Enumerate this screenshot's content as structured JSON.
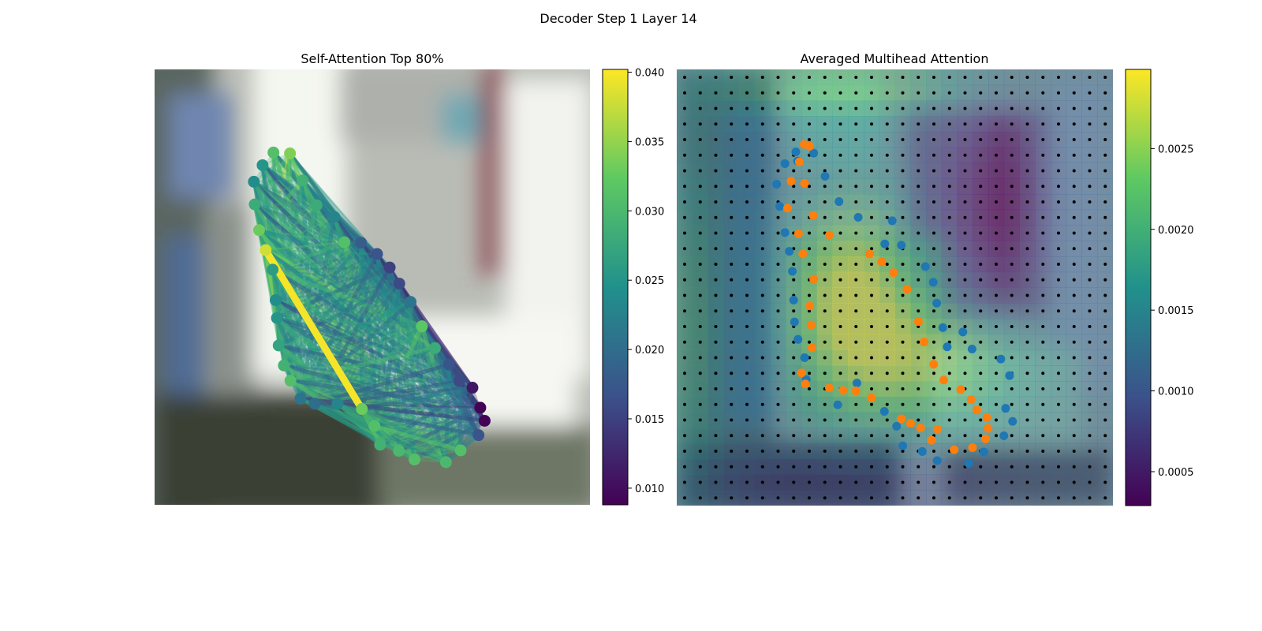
{
  "figure": {
    "title": "Decoder Step 1 Layer 14"
  },
  "colormap": {
    "name": "viridis",
    "stops": [
      "#440154",
      "#3b528b",
      "#21918c",
      "#5ec962",
      "#fde725"
    ]
  },
  "chart_data": [
    {
      "id": "self_attention",
      "type": "scatter",
      "title": "Self-Attention Top 80%",
      "xlim": [
        0,
        1
      ],
      "ylim": [
        0,
        1
      ],
      "background": "blurred photograph",
      "colorbar": {
        "min": 0.0088,
        "max": 0.0402,
        "ticks": [
          0.01,
          0.015,
          0.02,
          0.025,
          0.03,
          0.035,
          0.04
        ],
        "tick_labels": [
          "0.010",
          "0.015",
          "0.020",
          "0.025",
          "0.030",
          "0.035",
          "0.040"
        ]
      },
      "points": [
        {
          "x": 0.273,
          "y": 0.809,
          "v": 0.031
        },
        {
          "x": 0.311,
          "y": 0.807,
          "v": 0.034
        },
        {
          "x": 0.248,
          "y": 0.78,
          "v": 0.025
        },
        {
          "x": 0.34,
          "y": 0.745,
          "v": 0.029
        },
        {
          "x": 0.228,
          "y": 0.742,
          "v": 0.024
        },
        {
          "x": 0.372,
          "y": 0.688,
          "v": 0.028
        },
        {
          "x": 0.23,
          "y": 0.69,
          "v": 0.028
        },
        {
          "x": 0.413,
          "y": 0.661,
          "v": 0.023
        },
        {
          "x": 0.24,
          "y": 0.631,
          "v": 0.033
        },
        {
          "x": 0.436,
          "y": 0.603,
          "v": 0.031
        },
        {
          "x": 0.474,
          "y": 0.602,
          "v": 0.018
        },
        {
          "x": 0.255,
          "y": 0.585,
          "v": 0.038
        },
        {
          "x": 0.511,
          "y": 0.576,
          "v": 0.017
        },
        {
          "x": 0.54,
          "y": 0.545,
          "v": 0.015
        },
        {
          "x": 0.271,
          "y": 0.54,
          "v": 0.026
        },
        {
          "x": 0.562,
          "y": 0.508,
          "v": 0.016
        },
        {
          "x": 0.278,
          "y": 0.47,
          "v": 0.024
        },
        {
          "x": 0.588,
          "y": 0.466,
          "v": 0.021
        },
        {
          "x": 0.281,
          "y": 0.429,
          "v": 0.025
        },
        {
          "x": 0.614,
          "y": 0.41,
          "v": 0.032
        },
        {
          "x": 0.285,
          "y": 0.366,
          "v": 0.027
        },
        {
          "x": 0.644,
          "y": 0.36,
          "v": 0.028
        },
        {
          "x": 0.297,
          "y": 0.32,
          "v": 0.029
        },
        {
          "x": 0.676,
          "y": 0.322,
          "v": 0.017
        },
        {
          "x": 0.7,
          "y": 0.284,
          "v": 0.016
        },
        {
          "x": 0.73,
          "y": 0.269,
          "v": 0.011
        },
        {
          "x": 0.312,
          "y": 0.285,
          "v": 0.031
        },
        {
          "x": 0.335,
          "y": 0.244,
          "v": 0.021
        },
        {
          "x": 0.368,
          "y": 0.232,
          "v": 0.02
        },
        {
          "x": 0.42,
          "y": 0.232,
          "v": 0.023
        },
        {
          "x": 0.476,
          "y": 0.22,
          "v": 0.033
        },
        {
          "x": 0.748,
          "y": 0.223,
          "v": 0.009
        },
        {
          "x": 0.758,
          "y": 0.193,
          "v": 0.009
        },
        {
          "x": 0.744,
          "y": 0.16,
          "v": 0.017
        },
        {
          "x": 0.505,
          "y": 0.181,
          "v": 0.031
        },
        {
          "x": 0.518,
          "y": 0.138,
          "v": 0.029
        },
        {
          "x": 0.561,
          "y": 0.124,
          "v": 0.03
        },
        {
          "x": 0.597,
          "y": 0.104,
          "v": 0.031
        },
        {
          "x": 0.669,
          "y": 0.098,
          "v": 0.03
        },
        {
          "x": 0.703,
          "y": 0.125,
          "v": 0.031
        }
      ],
      "highlight_edge": {
        "from": 11,
        "to": 30
      }
    },
    {
      "id": "averaged_multihead",
      "type": "heatmap",
      "title": "Averaged Multihead Attention",
      "xlim": [
        0,
        1
      ],
      "ylim": [
        0,
        1
      ],
      "grid_size": [
        28,
        28
      ],
      "colorbar": {
        "min": 0.00029,
        "max": 0.00299,
        "ticks": [
          0.0005,
          0.001,
          0.0015,
          0.002,
          0.0025
        ],
        "tick_labels": [
          "0.0005",
          "0.0010",
          "0.0015",
          "0.0020",
          "0.0025"
        ]
      },
      "series": [
        {
          "color": "#1f77b4",
          "points": [
            [
              0.273,
              0.811
            ],
            [
              0.314,
              0.808
            ],
            [
              0.248,
              0.784
            ],
            [
              0.277,
              0.79
            ],
            [
              0.34,
              0.755
            ],
            [
              0.229,
              0.737
            ],
            [
              0.372,
              0.697
            ],
            [
              0.236,
              0.686
            ],
            [
              0.416,
              0.661
            ],
            [
              0.494,
              0.653
            ],
            [
              0.248,
              0.626
            ],
            [
              0.477,
              0.6
            ],
            [
              0.515,
              0.597
            ],
            [
              0.258,
              0.583
            ],
            [
              0.57,
              0.548
            ],
            [
              0.265,
              0.537
            ],
            [
              0.588,
              0.512
            ],
            [
              0.268,
              0.471
            ],
            [
              0.596,
              0.464
            ],
            [
              0.27,
              0.421
            ],
            [
              0.61,
              0.408
            ],
            [
              0.278,
              0.381
            ],
            [
              0.656,
              0.398
            ],
            [
              0.62,
              0.364
            ],
            [
              0.293,
              0.339
            ],
            [
              0.677,
              0.359
            ],
            [
              0.743,
              0.336
            ],
            [
              0.763,
              0.298
            ],
            [
              0.77,
              0.193
            ],
            [
              0.75,
              0.16
            ],
            [
              0.297,
              0.289
            ],
            [
              0.413,
              0.281
            ],
            [
              0.369,
              0.231
            ],
            [
              0.476,
              0.216
            ],
            [
              0.754,
              0.223
            ],
            [
              0.504,
              0.182
            ],
            [
              0.518,
              0.137
            ],
            [
              0.563,
              0.124
            ],
            [
              0.597,
              0.103
            ],
            [
              0.669,
              0.097
            ],
            [
              0.704,
              0.123
            ]
          ]
        },
        {
          "color": "#ff7f0e",
          "points": [
            [
              0.292,
              0.828
            ],
            [
              0.305,
              0.824
            ],
            [
              0.281,
              0.788
            ],
            [
              0.262,
              0.744
            ],
            [
              0.293,
              0.739
            ],
            [
              0.254,
              0.682
            ],
            [
              0.313,
              0.665
            ],
            [
              0.279,
              0.623
            ],
            [
              0.35,
              0.62
            ],
            [
              0.289,
              0.577
            ],
            [
              0.442,
              0.577
            ],
            [
              0.47,
              0.559
            ],
            [
              0.314,
              0.519
            ],
            [
              0.497,
              0.534
            ],
            [
              0.305,
              0.458
            ],
            [
              0.528,
              0.496
            ],
            [
              0.308,
              0.414
            ],
            [
              0.554,
              0.422
            ],
            [
              0.31,
              0.362
            ],
            [
              0.567,
              0.375
            ],
            [
              0.286,
              0.304
            ],
            [
              0.295,
              0.279
            ],
            [
              0.589,
              0.324
            ],
            [
              0.35,
              0.27
            ],
            [
              0.381,
              0.264
            ],
            [
              0.411,
              0.263
            ],
            [
              0.446,
              0.247
            ],
            [
              0.612,
              0.288
            ],
            [
              0.651,
              0.266
            ],
            [
              0.675,
              0.243
            ],
            [
              0.688,
              0.219
            ],
            [
              0.515,
              0.199
            ],
            [
              0.536,
              0.189
            ],
            [
              0.598,
              0.175
            ],
            [
              0.559,
              0.178
            ],
            [
              0.711,
              0.202
            ],
            [
              0.714,
              0.177
            ],
            [
              0.584,
              0.15
            ],
            [
              0.636,
              0.128
            ],
            [
              0.678,
              0.133
            ],
            [
              0.708,
              0.153
            ]
          ]
        }
      ]
    }
  ]
}
